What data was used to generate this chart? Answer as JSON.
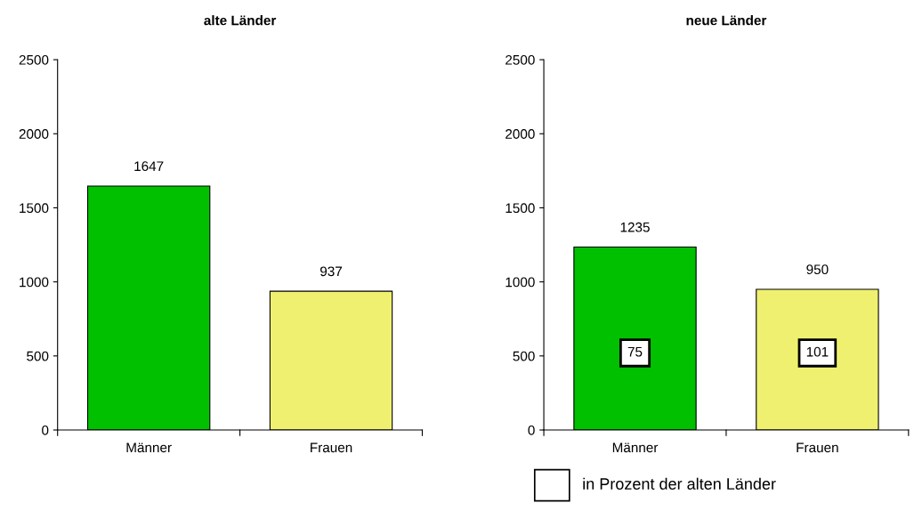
{
  "chart_data": [
    {
      "type": "bar",
      "title": "alte Länder",
      "categories": [
        "Männer",
        "Frauen"
      ],
      "values": [
        1647,
        937
      ],
      "colors": [
        "#00c000",
        "#f0f070"
      ],
      "ylim": [
        0,
        2500
      ],
      "yticks": [
        0,
        500,
        1000,
        1500,
        2000,
        2500
      ],
      "data_labels": true,
      "grid": false,
      "legend": false
    },
    {
      "type": "bar",
      "title": "neue Länder",
      "categories": [
        "Männer",
        "Frauen"
      ],
      "values": [
        1235,
        950
      ],
      "colors": [
        "#00c000",
        "#f0f070"
      ],
      "ylim": [
        0,
        2500
      ],
      "yticks": [
        0,
        500,
        1000,
        1500,
        2000,
        2500
      ],
      "data_labels": true,
      "grid": false,
      "legend": false,
      "annotations": [
        {
          "text": "75",
          "x": "Männer",
          "y": 520
        },
        {
          "text": "101",
          "x": "Frauen",
          "y": 520
        },
        "in Prozent der alten Länder"
      ]
    }
  ]
}
